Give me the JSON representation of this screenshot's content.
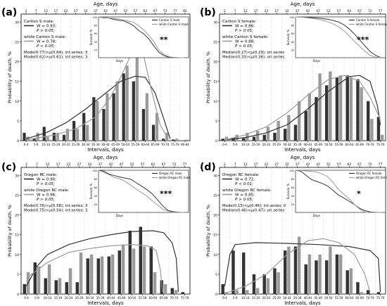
{
  "figure": {
    "axis_titles": {
      "x_bottom": "Intervals, days",
      "x_top": "Age, days",
      "y": "Probability of death, %",
      "inset_y": "Survival, %",
      "inset_x": "Days"
    }
  },
  "panels": [
    {
      "label": "(a)",
      "legend": [
        {
          "name": "Canton S male:",
          "w": "W = 0.93;",
          "p": "P > 0.05;"
        },
        {
          "name": "white Canton S male:",
          "w": "W = 0.78;",
          "p": "P < 0.05;"
        }
      ],
      "mode_lines": [
        "Mode(0.77)>μ(0.64); int.series; 3",
        "Mode(0.62)>μ(0.61); int.series; 3"
      ],
      "inset": {
        "legend": [
          "Canton S male",
          "white Canton S male"
        ],
        "stars": "**"
      }
    },
    {
      "label": "(b)",
      "legend": [
        {
          "name": "Canton S female:",
          "w": "W = 0.86;",
          "p": "P > 0.05;"
        },
        {
          "name": "white Canton S female:",
          "w": "W = 0.88;",
          "p": "P > 0.05;"
        }
      ],
      "mode_lines": [
        "Median(0.27)<μ(0.29); ori.series",
        "Median(0.33)<μ(0.36); ori.series"
      ],
      "inset": {
        "legend": [
          "Canton S female",
          "white Canton S female"
        ],
        "stars": "***"
      }
    },
    {
      "label": "(c)",
      "legend": [
        {
          "name": "Oregon RC male:",
          "w": "W = 0.90;",
          "p": "P > 0.05;"
        },
        {
          "name": "white Oregon RC male:",
          "w": "W = 0.96;",
          "p": "P > 0.05;"
        }
      ],
      "mode_lines": [
        "Mode(0.76)>μ(0.58); int.series; 3",
        "Mode(0.75)>μ(0.54); int.series; 3"
      ],
      "inset": {
        "legend": [
          "Oregon RC male",
          "white Oregon RC male"
        ],
        "stars": "***"
      }
    },
    {
      "label": "(d)",
      "legend": [
        {
          "name": "Oregon RC female:",
          "w": "W = 0.72;",
          "p": "P < 0.01;"
        },
        {
          "name": "white Oregon RC female:",
          "w": "W = 0.85;",
          "p": "P > 0.05;"
        }
      ],
      "mode_lines": [
        "Mode(0.15)<μ(0.46); int.series; 0",
        "Median(0.46)<μ(0.47); ori.series"
      ],
      "inset": {
        "legend": [
          "Oregon RC female",
          "white Oregon RC female"
        ],
        "stars": "*"
      }
    }
  ],
  "chart_data": [
    {
      "type": "bar",
      "panel": "(a)",
      "categories": [
        "0-4",
        "5-9",
        "10-14",
        "15-19",
        "20-24",
        "25-29",
        "30-34",
        "35-39",
        "40-44",
        "45-49",
        "50-54",
        "55-59",
        "60-64",
        "65-69",
        "70-74",
        "75-79",
        "80-84"
      ],
      "top_axis_ticks": [
        "2",
        "7",
        "12",
        "17",
        "22",
        "27",
        "32",
        "37",
        "42",
        "47",
        "52",
        "57",
        "62",
        "67",
        "72",
        "77",
        "82"
      ],
      "yticks": [
        "0",
        "5",
        "10",
        "15",
        "20",
        "25",
        "30"
      ],
      "ylim": [
        0,
        32
      ],
      "series": [
        {
          "values": [
            2,
            0.5,
            3.5,
            2,
            1.5,
            5,
            7,
            11,
            8,
            12,
            17,
            15,
            8,
            4,
            0.5,
            0.3,
            0
          ]
        },
        {
          "values": [
            1,
            2,
            1,
            2,
            3,
            3,
            4,
            10,
            12,
            15,
            19,
            24,
            12,
            7,
            2,
            0.5,
            0.3
          ]
        }
      ],
      "fit_curves": [
        {
          "points": [
            [
              0,
              0.5
            ],
            [
              2,
              2
            ],
            [
              4,
              4.5
            ],
            [
              6,
              8
            ],
            [
              8,
              12
            ],
            [
              9.5,
              15
            ],
            [
              11,
              16.3
            ],
            [
              12,
              16
            ],
            [
              13,
              12
            ],
            [
              13.8,
              6
            ],
            [
              14.5,
              0.5
            ]
          ]
        },
        {
          "points": [
            [
              0,
              0.2
            ],
            [
              3,
              1.5
            ],
            [
              5,
              3
            ],
            [
              7,
              6
            ],
            [
              8.5,
              11
            ],
            [
              9.7,
              17
            ],
            [
              10.6,
              22
            ],
            [
              11.2,
              24
            ],
            [
              11.8,
              22
            ],
            [
              12.6,
              13
            ],
            [
              13.5,
              4
            ],
            [
              14.3,
              0.5
            ]
          ]
        }
      ],
      "inset_yticks": [
        "20",
        "40",
        "60",
        "80",
        "100"
      ]
    },
    {
      "type": "bar",
      "panel": "(b)",
      "categories": [
        "0-4",
        "5-9",
        "10-14",
        "15-19",
        "20-24",
        "25-29",
        "30-34",
        "35-39",
        "40-44",
        "45-49",
        "50-54",
        "55-59",
        "60-64",
        "65-69",
        "70-74",
        "75-79"
      ],
      "top_axis_ticks": [
        "2",
        "7",
        "12",
        "17",
        "22",
        "27",
        "32",
        "37",
        "42",
        "47",
        "52",
        "57",
        "62",
        "67",
        "72",
        "77"
      ],
      "yticks": [
        "0",
        "5",
        "10",
        "15",
        "20",
        "25",
        "30"
      ],
      "ylim": [
        0,
        32
      ],
      "series": [
        {
          "values": [
            0.5,
            0.8,
            0.6,
            1,
            1.5,
            2,
            3,
            4,
            7.5,
            11,
            14,
            16,
            16.5,
            15.5,
            10,
            6
          ]
        },
        {
          "values": [
            1,
            1.5,
            2,
            2.5,
            3.5,
            5,
            6.5,
            10,
            12,
            17,
            17.5,
            16.5,
            16,
            13.5,
            5.5,
            1.5
          ]
        }
      ],
      "fit_curves": [
        {
          "points": [
            [
              0,
              0.2
            ],
            [
              2,
              0.8
            ],
            [
              4,
              2
            ],
            [
              6,
              4
            ],
            [
              8,
              8
            ],
            [
              10,
              12.5
            ],
            [
              12,
              16.2
            ],
            [
              13,
              16.5
            ],
            [
              14,
              15
            ],
            [
              14.7,
              9
            ],
            [
              15,
              4
            ]
          ]
        },
        {
          "points": [
            [
              0,
              0.2
            ],
            [
              2,
              1.5
            ],
            [
              4,
              3.5
            ],
            [
              6,
              7
            ],
            [
              8,
              11.5
            ],
            [
              10,
              15.5
            ],
            [
              11.6,
              16.5
            ],
            [
              13,
              15
            ],
            [
              14,
              11
            ],
            [
              14.8,
              6.5
            ],
            [
              15,
              5
            ]
          ]
        }
      ],
      "inset_yticks": [
        "20",
        "40",
        "60",
        "80",
        "100"
      ]
    },
    {
      "type": "bar",
      "panel": "(c)",
      "categories": [
        "0-4",
        "5-9",
        "10-14",
        "15-19",
        "20-24",
        "25-29",
        "30-34",
        "35-39",
        "40-44",
        "45-49",
        "50-54",
        "55-59",
        "60-64",
        "65-69",
        "70-74",
        "75-79"
      ],
      "top_axis_ticks": [
        "2",
        "7",
        "12",
        "17",
        "22",
        "27",
        "32",
        "37",
        "42",
        "47",
        "52",
        "57",
        "62",
        "67",
        "72",
        "77"
      ],
      "yticks": [
        "0",
        "5",
        "10",
        "15",
        "20",
        "25",
        "30"
      ],
      "ylim": [
        0,
        32
      ],
      "series": [
        {
          "values": [
            2.5,
            8,
            4,
            3.5,
            3,
            3,
            9,
            9,
            9.5,
            11,
            16,
            17,
            12,
            3.5,
            1.5,
            0.5
          ]
        },
        {
          "values": [
            5.5,
            7,
            7.5,
            4,
            6.5,
            10.5,
            10,
            9.5,
            10,
            12.5,
            11.5,
            12,
            5.5,
            2.5,
            1,
            0
          ]
        }
      ],
      "fit_curves": [
        {
          "points": [
            [
              0,
              2
            ],
            [
              1,
              7
            ],
            [
              2,
              10
            ],
            [
              4,
              12.5
            ],
            [
              6,
              14
            ],
            [
              8,
              15
            ],
            [
              10,
              15.8
            ],
            [
              12,
              16
            ],
            [
              13,
              15.5
            ],
            [
              13.8,
              13
            ],
            [
              14.2,
              9
            ],
            [
              14.4,
              0.5
            ]
          ]
        },
        {
          "points": [
            [
              0,
              4
            ],
            [
              1,
              6
            ],
            [
              2,
              8
            ],
            [
              4,
              10.5
            ],
            [
              6,
              11.5
            ],
            [
              8,
              12.2
            ],
            [
              10,
              12.5
            ],
            [
              11.5,
              12.2
            ],
            [
              12.3,
              11
            ],
            [
              12.7,
              6
            ],
            [
              12.9,
              0.5
            ]
          ]
        }
      ],
      "inset_yticks": [
        "20",
        "40",
        "60",
        "80",
        "100"
      ]
    },
    {
      "type": "bar",
      "panel": "(d)",
      "categories": [
        "0-4",
        "5-9",
        "10-14",
        "15-19",
        "20-24",
        "25-29",
        "30-34",
        "35-39",
        "40-44",
        "45-49",
        "50-54",
        "55-59",
        "60-64",
        "65-69",
        "70-74",
        "75-79"
      ],
      "top_axis_ticks": [
        "2",
        "7",
        "12",
        "17",
        "22",
        "27",
        "32",
        "37",
        "42",
        "47",
        "52",
        "57",
        "62",
        "67",
        "72",
        "77"
      ],
      "yticks": [
        "0",
        "5",
        "10",
        "15",
        "20",
        "25",
        "30"
      ],
      "ylim": [
        0,
        32
      ],
      "series": [
        {
          "values": [
            2.5,
            11,
            10.5,
            5,
            5,
            6.5,
            11,
            12,
            7.5,
            8.5,
            8.5,
            10,
            6,
            3,
            1,
            0.5
          ]
        },
        {
          "values": [
            0.5,
            1,
            1,
            1.5,
            4,
            5.5,
            12,
            14.5,
            10,
            10,
            12,
            10,
            6.5,
            0.5,
            0,
            0
          ]
        }
      ],
      "fit_curves": [
        {
          "points": [
            [
              0,
              2
            ],
            [
              0.5,
              10
            ],
            [
              1,
              12.5
            ],
            [
              3,
              13
            ],
            [
              6,
              12.8
            ],
            [
              9,
              12.5
            ],
            [
              12,
              12
            ],
            [
              14,
              11
            ],
            [
              14.8,
              9
            ],
            [
              15,
              0.5
            ]
          ]
        },
        {
          "points": [
            [
              0,
              0.2
            ],
            [
              2,
              2
            ],
            [
              4,
              5
            ],
            [
              6,
              10
            ],
            [
              8,
              13.5
            ],
            [
              9.5,
              14
            ],
            [
              11,
              13
            ],
            [
              12.5,
              10
            ],
            [
              13.5,
              5
            ],
            [
              14,
              0.5
            ]
          ]
        }
      ],
      "inset_yticks": [
        "20",
        "40",
        "60",
        "80",
        "100"
      ]
    }
  ]
}
